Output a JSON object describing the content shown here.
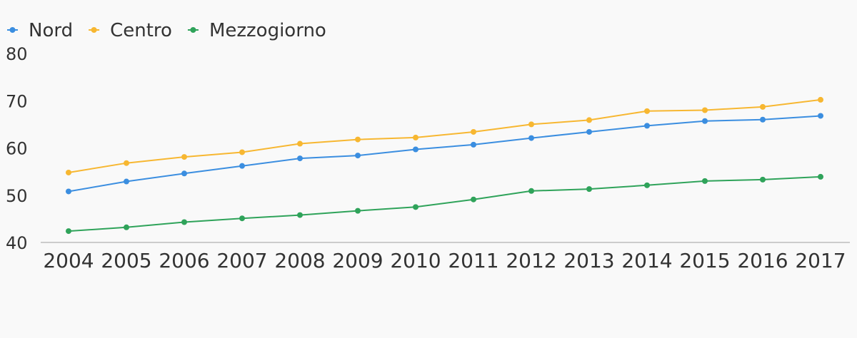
{
  "chart_data": {
    "type": "line",
    "categories": [
      "2004",
      "2005",
      "2006",
      "2007",
      "2008",
      "2009",
      "2010",
      "2011",
      "2012",
      "2013",
      "2014",
      "2015",
      "2016",
      "2017"
    ],
    "series": [
      {
        "name": "Nord",
        "color": "#3b8ee0",
        "values": [
          50.8,
          52.9,
          54.6,
          56.2,
          57.8,
          58.4,
          59.7,
          60.7,
          62.1,
          63.4,
          64.7,
          65.7,
          66.0,
          66.8
        ]
      },
      {
        "name": "Centro",
        "color": "#f7b731",
        "values": [
          54.8,
          56.8,
          58.1,
          59.1,
          60.9,
          61.8,
          62.2,
          63.4,
          65.0,
          65.9,
          67.8,
          68.0,
          68.7,
          70.2
        ]
      },
      {
        "name": "Mezzogiorno",
        "color": "#2fa35a",
        "values": [
          42.4,
          43.2,
          44.3,
          45.1,
          45.8,
          46.7,
          47.5,
          49.1,
          50.9,
          51.3,
          52.1,
          53.0,
          53.3,
          53.9
        ]
      }
    ],
    "yticks": [
      40,
      50,
      60,
      70,
      80
    ],
    "ylim": [
      40,
      80
    ],
    "grid": false,
    "legend": "top-left"
  }
}
